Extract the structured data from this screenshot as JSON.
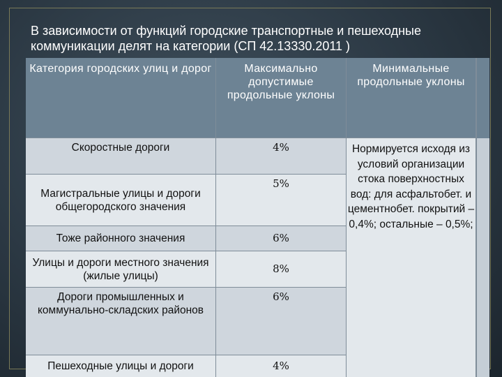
{
  "slide": {
    "title": "В зависимости от функций городские транспортные и пешеходные коммуникации делят на категории (СП 42.13330.2011  )"
  },
  "table": {
    "headers": [
      "Категория городских улиц и дорог",
      "Максимально допустимые продольные уклоны",
      "Минимальные продольные уклоны"
    ],
    "rows": [
      {
        "category": "Скоростные дороги",
        "max_slope": "4%"
      },
      {
        "category": "Магистральные улицы и дороги общегородского значения",
        "max_slope": "5%"
      },
      {
        "category": "Тоже районного значения",
        "max_slope": "6%"
      },
      {
        "category": "Улицы и дороги местного значения (жилые улицы)",
        "max_slope": "8%"
      },
      {
        "category": "Дороги промышленных и коммунально-складских районов",
        "max_slope": "6%"
      },
      {
        "category": "Пешеходные улицы и дороги",
        "max_slope": "4%"
      }
    ],
    "min_slope_note": "Нормируется исходя из условий организации стока поверхностных вод: для асфальтобет. и цементнобет. покрытий – 0,4%; остальные – 0,5%;"
  }
}
